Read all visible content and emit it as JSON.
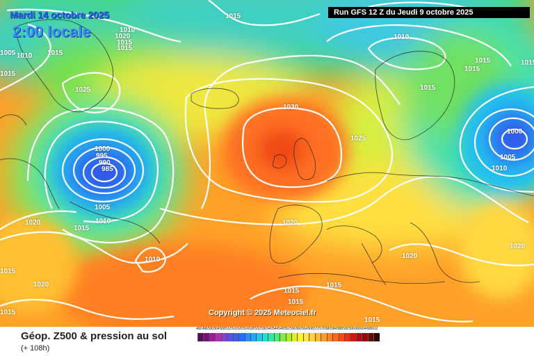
{
  "header": {
    "date": "Mardi 14 octobre 2025",
    "time": "2:00 locale",
    "run": "Run GFS 12 Z du Jeudi 9 octobre 2025"
  },
  "copyright": "Copyright © 2025 Meteociel.fr",
  "footer": {
    "title": "Géop. Z500 & pression au sol",
    "subtitle": "(+ 108h)"
  },
  "isobar_labels": [
    "1015",
    "1030",
    "1025",
    "1020",
    "1015",
    "1005",
    "1010",
    "1015",
    "1010",
    "1015",
    "1015",
    "1025",
    "1030",
    "1000",
    "995",
    "990",
    "985",
    "1005",
    "1010",
    "1015",
    "1020",
    "1025",
    "1000",
    "1005",
    "1010",
    "1020",
    "1020",
    "1015",
    "1020",
    "1015",
    "1015",
    "1010",
    "1020",
    "1015",
    "1015",
    "1015",
    "1015",
    "1015",
    "1015",
    "1015",
    "1010",
    "1005"
  ],
  "scale": {
    "values": [
      "492",
      "496",
      "500",
      "504",
      "508",
      "512",
      "516",
      "520",
      "524",
      "528",
      "532",
      "536",
      "540",
      "544",
      "548",
      "552",
      "556",
      "560",
      "564",
      "568",
      "572",
      "576",
      "580",
      "584",
      "588",
      "592",
      "596",
      "600",
      "604",
      "608",
      "612"
    ],
    "colors": [
      "#5a0a5a",
      "#7a0f7a",
      "#9a1a9a",
      "#b02fb0",
      "#8a3fd0",
      "#5a4fe0",
      "#3a5ff0",
      "#1f6ff8",
      "#2a8cff",
      "#20a8ff",
      "#1ec8f0",
      "#20e0d8",
      "#30e8a8",
      "#50e870",
      "#80ee40",
      "#b0f020",
      "#e0f020",
      "#f8f030",
      "#ffe640",
      "#ffd038",
      "#ffb830",
      "#ff9c28",
      "#ff8020",
      "#ff6418",
      "#ff4810",
      "#f02c10",
      "#d01810",
      "#b00c10",
      "#900810",
      "#680808",
      "#300404"
    ],
    "min_label": "492",
    "max_label": "612"
  },
  "centers": {
    "high_atlantic": "1030",
    "low_labrador": "985",
    "low_baltic": "1000"
  }
}
